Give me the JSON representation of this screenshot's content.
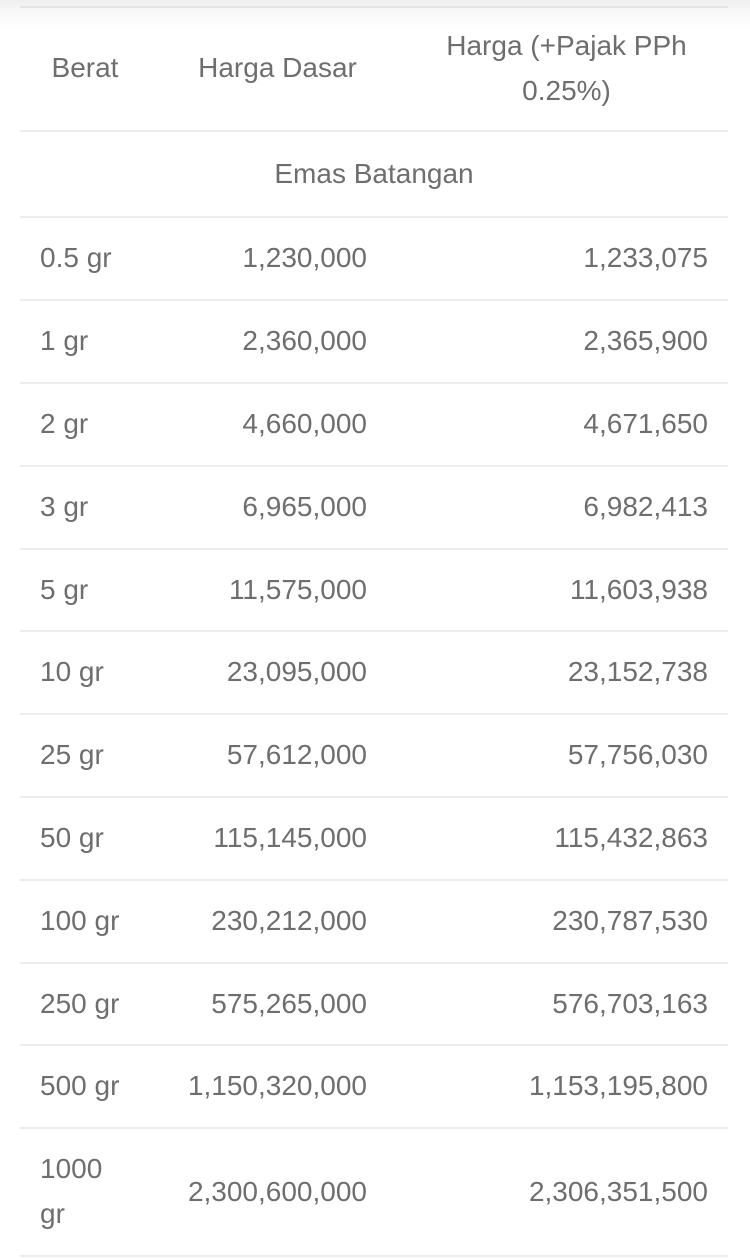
{
  "table": {
    "headers": {
      "weight": "Berat",
      "base_price": "Harga Dasar",
      "tax_price_line1": "Harga (+Pajak PPh",
      "tax_price_line2": "0.25%)"
    },
    "section_title": "Emas Batangan",
    "rows": [
      {
        "weight": "0.5 gr",
        "base_price": "1,230,000",
        "price_with_tax": "1,233,075"
      },
      {
        "weight": "1 gr",
        "base_price": "2,360,000",
        "price_with_tax": "2,365,900"
      },
      {
        "weight": "2 gr",
        "base_price": "4,660,000",
        "price_with_tax": "4,671,650"
      },
      {
        "weight": "3 gr",
        "base_price": "6,965,000",
        "price_with_tax": "6,982,413"
      },
      {
        "weight": "5 gr",
        "base_price": "11,575,000",
        "price_with_tax": "11,603,938"
      },
      {
        "weight": "10 gr",
        "base_price": "23,095,000",
        "price_with_tax": "23,152,738"
      },
      {
        "weight": "25 gr",
        "base_price": "57,612,000",
        "price_with_tax": "57,756,030"
      },
      {
        "weight": "50 gr",
        "base_price": "115,145,000",
        "price_with_tax": "115,432,863"
      },
      {
        "weight": "100 gr",
        "base_price": "230,212,000",
        "price_with_tax": "230,787,530"
      },
      {
        "weight": "250 gr",
        "base_price": "575,265,000",
        "price_with_tax": "576,703,163"
      },
      {
        "weight": "500 gr",
        "base_price": "1,150,320,000",
        "price_with_tax": "1,153,195,800"
      },
      {
        "weight": "1000 gr",
        "base_price": "2,300,600,000",
        "price_with_tax": "2,306,351,500"
      }
    ]
  },
  "colors": {
    "text": "#6e6e6e",
    "divider": "#ededed",
    "top_divider": "#e4e4e4",
    "background": "#ffffff"
  }
}
